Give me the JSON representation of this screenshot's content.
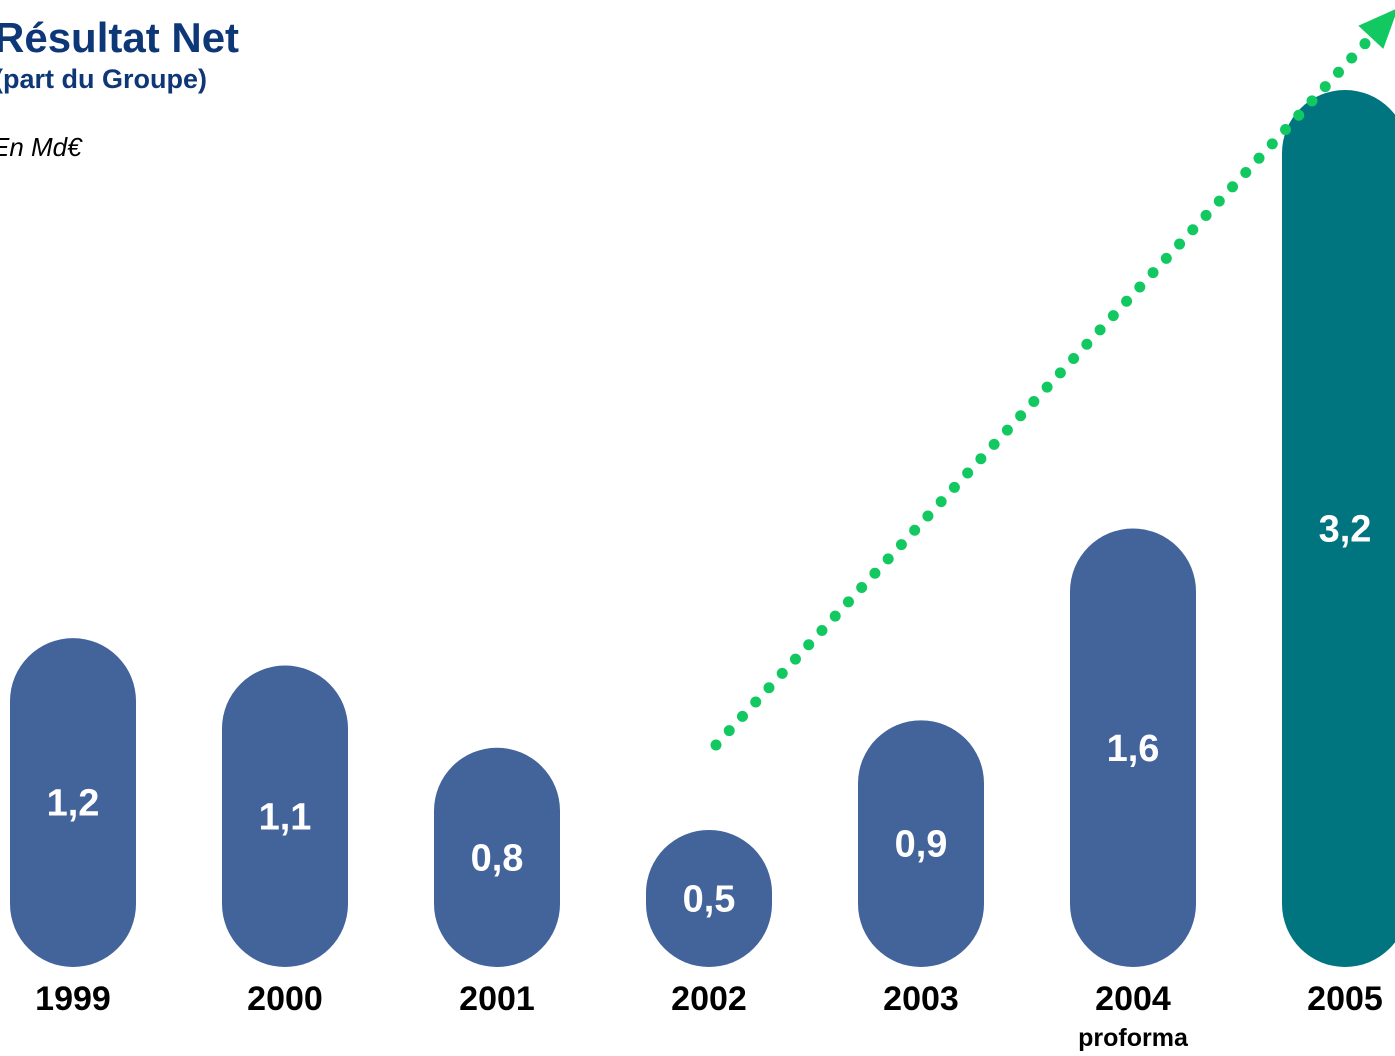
{
  "header": {
    "title": "Résultat Net",
    "subtitle": "(part du Groupe)",
    "unit": "En Md€"
  },
  "colors": {
    "bar": "#43639b",
    "highlight": "#00757f",
    "trend": "#12c860"
  },
  "chart_data": {
    "type": "bar",
    "title": "Résultat Net",
    "ylabel": "En Md€",
    "categories": [
      "1999",
      "2000",
      "2001",
      "2002",
      "2003",
      "2004",
      "2005"
    ],
    "category_sublabels": [
      "",
      "",
      "",
      "",
      "",
      "proforma",
      ""
    ],
    "values": [
      1.2,
      1.1,
      0.8,
      0.5,
      0.9,
      1.6,
      3.2
    ],
    "value_labels": [
      "1,2",
      "1,1",
      "0,8",
      "0,5",
      "0,9",
      "1,6",
      "3,2"
    ],
    "highlight_index": 6,
    "trend_arrow": {
      "from_category": "2002",
      "to_category": "2005"
    },
    "ylim": [
      0,
      3.2
    ],
    "grid": false,
    "legend": "none"
  }
}
